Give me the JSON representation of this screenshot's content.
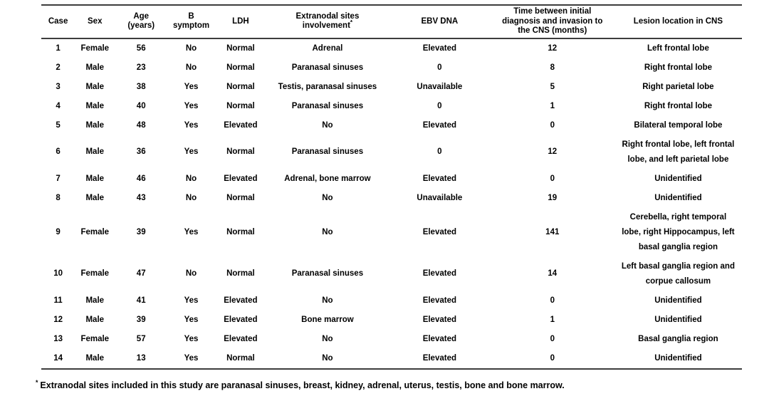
{
  "page": {
    "background": "#ffffff",
    "text_color": "#000000",
    "rule_color": "#3d3d3d"
  },
  "table": {
    "columns": [
      {
        "label": "Case"
      },
      {
        "label": "Sex"
      },
      {
        "label": "Age\n(years)"
      },
      {
        "label": "B\nsymptom"
      },
      {
        "label": "LDH"
      },
      {
        "label": "Extranodal sites\ninvolvement",
        "sup": "*"
      },
      {
        "label": "EBV DNA"
      },
      {
        "label": "Time between initial\ndiagnosis and invasion to\nthe CNS (months)"
      },
      {
        "label": "Lesion location in CNS"
      }
    ],
    "rows": [
      [
        "1",
        "Female",
        "56",
        "No",
        "Normal",
        "Adrenal",
        "Elevated",
        "12",
        "Left frontal lobe"
      ],
      [
        "2",
        "Male",
        "23",
        "No",
        "Normal",
        "Paranasal sinuses",
        "0",
        "8",
        "Right frontal lobe"
      ],
      [
        "3",
        "Male",
        "38",
        "Yes",
        "Normal",
        "Testis, paranasal sinuses",
        "Unavailable",
        "5",
        "Right parietal lobe"
      ],
      [
        "4",
        "Male",
        "40",
        "Yes",
        "Normal",
        "Paranasal sinuses",
        "0",
        "1",
        "Right frontal lobe"
      ],
      [
        "5",
        "Male",
        "48",
        "Yes",
        "Elevated",
        "No",
        "Elevated",
        "0",
        "Bilateral temporal lobe"
      ],
      [
        "6",
        "Male",
        "36",
        "Yes",
        "Normal",
        "Paranasal sinuses",
        "0",
        "12",
        "Right frontal lobe, left frontal\nlobe, and left parietal lobe"
      ],
      [
        "7",
        "Male",
        "46",
        "No",
        "Elevated",
        "Adrenal, bone marrow",
        "Elevated",
        "0",
        "Unidentified"
      ],
      [
        "8",
        "Male",
        "43",
        "No",
        "Normal",
        "No",
        "Unavailable",
        "19",
        "Unidentified"
      ],
      [
        "9",
        "Female",
        "39",
        "Yes",
        "Normal",
        "No",
        "Elevated",
        "141",
        "Cerebella, right temporal\nlobe, right Hippocampus, left\nbasal ganglia region"
      ],
      [
        "10",
        "Female",
        "47",
        "No",
        "Normal",
        "Paranasal sinuses",
        "Elevated",
        "14",
        "Left basal ganglia region and\ncorpue callosum"
      ],
      [
        "11",
        "Male",
        "41",
        "Yes",
        "Elevated",
        "No",
        "Elevated",
        "0",
        "Unidentified"
      ],
      [
        "12",
        "Male",
        "39",
        "Yes",
        "Elevated",
        "Bone marrow",
        "Elevated",
        "1",
        "Unidentified"
      ],
      [
        "13",
        "Female",
        "57",
        "Yes",
        "Elevated",
        "No",
        "Elevated",
        "0",
        "Basal ganglia region"
      ],
      [
        "14",
        "Male",
        "13",
        "Yes",
        "Normal",
        "No",
        "Elevated",
        "0",
        "Unidentified"
      ]
    ]
  },
  "footnote": {
    "marker": "*",
    "text": "Extranodal sites included in this study are paranasal sinuses, breast, kidney, adrenal, uterus, testis, bone and bone marrow."
  }
}
